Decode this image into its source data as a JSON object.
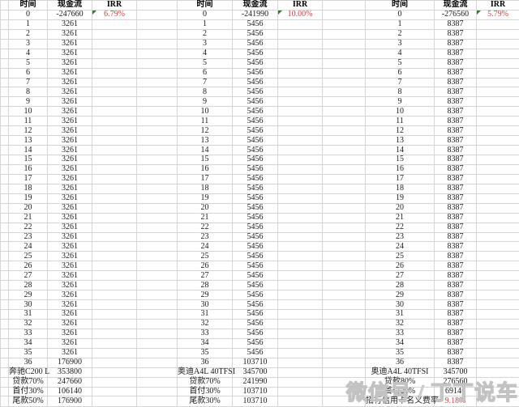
{
  "colors": {
    "irr_red": "#cc3f3f",
    "marker_green": "#2a7d2a",
    "gridline": "#d6d6d6"
  },
  "watermark": {
    "text": "微信号 / 丁丁说车"
  },
  "tables": [
    {
      "headers": [
        "时间",
        "现金流",
        "IRR"
      ],
      "irr": {
        "value": "6.79%",
        "marker": true
      },
      "rows": [
        [
          "0",
          "-247660"
        ],
        [
          "1",
          "3261"
        ],
        [
          "2",
          "3261"
        ],
        [
          "3",
          "3261"
        ],
        [
          "4",
          "3261"
        ],
        [
          "5",
          "3261"
        ],
        [
          "6",
          "3261"
        ],
        [
          "7",
          "3261"
        ],
        [
          "8",
          "3261"
        ],
        [
          "9",
          "3261"
        ],
        [
          "10",
          "3261"
        ],
        [
          "11",
          "3261"
        ],
        [
          "12",
          "3261"
        ],
        [
          "13",
          "3261"
        ],
        [
          "14",
          "3261"
        ],
        [
          "15",
          "3261"
        ],
        [
          "16",
          "3261"
        ],
        [
          "17",
          "3261"
        ],
        [
          "18",
          "3261"
        ],
        [
          "19",
          "3261"
        ],
        [
          "20",
          "3261"
        ],
        [
          "21",
          "3261"
        ],
        [
          "22",
          "3261"
        ],
        [
          "23",
          "3261"
        ],
        [
          "24",
          "3261"
        ],
        [
          "25",
          "3261"
        ],
        [
          "26",
          "3261"
        ],
        [
          "27",
          "3261"
        ],
        [
          "28",
          "3261"
        ],
        [
          "29",
          "3261"
        ],
        [
          "30",
          "3261"
        ],
        [
          "31",
          "3261"
        ],
        [
          "32",
          "3261"
        ],
        [
          "33",
          "3261"
        ],
        [
          "34",
          "3261"
        ],
        [
          "35",
          "3261"
        ],
        [
          "36",
          "176900"
        ]
      ],
      "footer": [
        {
          "label": "奔驰C200 L",
          "value": "353800"
        },
        {
          "label": "贷款70%",
          "value": "247660"
        },
        {
          "label": "首付30%",
          "value": "106140"
        },
        {
          "label": "尾款50%",
          "value": "176900"
        }
      ]
    },
    {
      "headers": [
        "时间",
        "现金流",
        "IRR"
      ],
      "irr": {
        "value": "10.00%",
        "marker": true
      },
      "rows": [
        [
          "0",
          "-241990"
        ],
        [
          "1",
          "5456"
        ],
        [
          "2",
          "5456"
        ],
        [
          "3",
          "5456"
        ],
        [
          "4",
          "5456"
        ],
        [
          "5",
          "5456"
        ],
        [
          "6",
          "5456"
        ],
        [
          "7",
          "5456"
        ],
        [
          "8",
          "5456"
        ],
        [
          "9",
          "5456"
        ],
        [
          "10",
          "5456"
        ],
        [
          "11",
          "5456"
        ],
        [
          "12",
          "5456"
        ],
        [
          "13",
          "5456"
        ],
        [
          "14",
          "5456"
        ],
        [
          "15",
          "5456"
        ],
        [
          "16",
          "5456"
        ],
        [
          "17",
          "5456"
        ],
        [
          "18",
          "5456"
        ],
        [
          "19",
          "5456"
        ],
        [
          "20",
          "5456"
        ],
        [
          "21",
          "5456"
        ],
        [
          "22",
          "5456"
        ],
        [
          "23",
          "5456"
        ],
        [
          "24",
          "5456"
        ],
        [
          "25",
          "5456"
        ],
        [
          "26",
          "5456"
        ],
        [
          "27",
          "5456"
        ],
        [
          "28",
          "5456"
        ],
        [
          "29",
          "5456"
        ],
        [
          "30",
          "5456"
        ],
        [
          "31",
          "5456"
        ],
        [
          "32",
          "5456"
        ],
        [
          "33",
          "5456"
        ],
        [
          "34",
          "5456"
        ],
        [
          "35",
          "5456"
        ],
        [
          "36",
          "103710"
        ]
      ],
      "footer": [
        {
          "label": "奥迪A4L 40TFSI",
          "value": "345700"
        },
        {
          "label": "贷款70%",
          "value": "241990"
        },
        {
          "label": "首付30%",
          "value": "103710"
        },
        {
          "label": "尾款30%",
          "value": "103710"
        }
      ]
    },
    {
      "headers": [
        "时间",
        "现金流",
        "IRR"
      ],
      "irr": {
        "value": "5.79%",
        "marker": true
      },
      "rows": [
        [
          "0",
          "-276560"
        ],
        [
          "1",
          "8387"
        ],
        [
          "2",
          "8387"
        ],
        [
          "3",
          "8387"
        ],
        [
          "4",
          "8387"
        ],
        [
          "5",
          "8387"
        ],
        [
          "6",
          "8387"
        ],
        [
          "7",
          "8387"
        ],
        [
          "8",
          "8387"
        ],
        [
          "9",
          "8387"
        ],
        [
          "10",
          "8387"
        ],
        [
          "11",
          "8387"
        ],
        [
          "12",
          "8387"
        ],
        [
          "13",
          "8387"
        ],
        [
          "14",
          "8387"
        ],
        [
          "15",
          "8387"
        ],
        [
          "16",
          "8387"
        ],
        [
          "17",
          "8387"
        ],
        [
          "18",
          "8387"
        ],
        [
          "19",
          "8387"
        ],
        [
          "20",
          "8387"
        ],
        [
          "21",
          "8387"
        ],
        [
          "22",
          "8387"
        ],
        [
          "23",
          "8387"
        ],
        [
          "24",
          "8387"
        ],
        [
          "25",
          "8387"
        ],
        [
          "26",
          "8387"
        ],
        [
          "27",
          "8387"
        ],
        [
          "28",
          "8387"
        ],
        [
          "29",
          "8387"
        ],
        [
          "30",
          "8387"
        ],
        [
          "31",
          "8387"
        ],
        [
          "32",
          "8387"
        ],
        [
          "33",
          "8387"
        ],
        [
          "34",
          "8387"
        ],
        [
          "35",
          "8387"
        ],
        [
          "36",
          "8387"
        ]
      ],
      "footer": [
        {
          "label": "奥迪A4L 40TFSI",
          "value": "345700"
        },
        {
          "label": "贷款80%",
          "value": "276560"
        },
        {
          "label": "首付20%",
          "value": "69140"
        },
        {
          "label": "招行信用卡名义费率",
          "value": "9.18%",
          "red": true
        }
      ]
    }
  ]
}
